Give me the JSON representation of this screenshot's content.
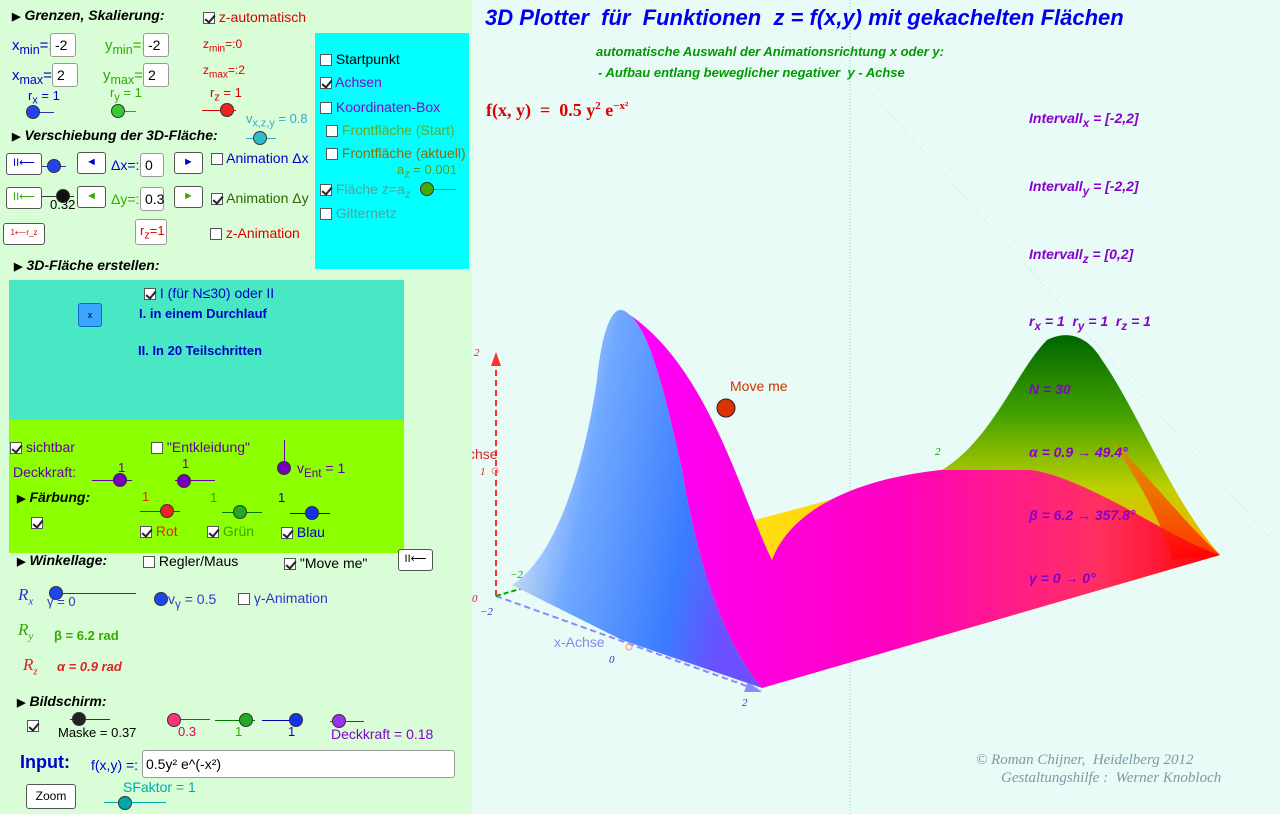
{
  "title": "3D Plotter  für  Funktionen  z = f(x,y) mit gekachelten Flächen",
  "subtitle1": "automatische Auswahl der Animationsrichtung x oder y:",
  "subtitle2": "- Aufbau entlang beweglicher negativer  y - Achse",
  "formula": {
    "lhs": "f(x, y)  =  0.5 y",
    "sup1": "2",
    "mid": " e",
    "sup2": "−x²"
  },
  "info": {
    "l1": "Intervall",
    "s1": "x",
    "v1": " = [-2,2]",
    "l2": "Intervall",
    "s2": "y",
    "v2": " = [-2,2]",
    "l3": "Intervall",
    "s3": "z",
    "v3": " = [0,2]",
    "r_line": "r",
    "rx": "x",
    "rx_v": " = 1  r",
    "ry": "y",
    "ry_v": " = 1  r",
    "rz": "z",
    "rz_v": " = 1",
    "n": "N = 30",
    "alpha": "α = 0.9 → 49.4°",
    "beta": "β = 6.2 → 357.8°",
    "gamma": "γ = 0 → 0°"
  },
  "credit1": "© Roman Chijner,  Heidelberg 2012",
  "credit2": "Gestaltungshilfe :  Werner Knobloch",
  "plot": {
    "move_me": "Move me",
    "z_axis": "z-Achse",
    "x_axis": "x-Achse",
    "t_z2": "2",
    "t_z1": "1",
    "t_z0": "0",
    "t_y2": "2",
    "t_ym2": "−2",
    "t_xm2": "−2",
    "t_x0": "0",
    "t_x2": "2"
  },
  "sec_grenzen": "Grenzen, Skalierung:",
  "z_auto": "z-automatisch",
  "xmin_l": "x",
  "xmin_s": "min",
  "xmin_eq": "=:",
  "xmin": "-2",
  "xmax_l": "x",
  "xmax_s": "max",
  "xmax_eq": "=:",
  "xmax": "2",
  "ymin_l": "y",
  "ymin_s": "min",
  "ymin_eq": "=:",
  "ymin": "-2",
  "ymax_l": "y",
  "ymax_s": "max",
  "ymax_eq": "=:",
  "ymax": "2",
  "zmin_l": "z",
  "zmin_s": "min",
  "zmin_v": "=:0",
  "zmax_l": "z",
  "zmax_s": "max",
  "zmax_v": "=:2",
  "rx_l": "r",
  "rx_s": "x",
  "rx_v": " = 1",
  "ry_l": "r",
  "ry_s": "y",
  "ry_v": " = 1",
  "rz_l": "r",
  "rz_s": "z",
  "rz_v": " = 1",
  "vxyz_l": "v",
  "vxyz_s": "x,z,y",
  "vxyz_v": " = 0.8",
  "cyan": {
    "startpunkt": "Startpunkt",
    "achsen": "Achsen",
    "kbox": "Koordinaten-Box",
    "front_start": "Frontfläche (Start)",
    "front_akt": "Frontfläche (aktuell)",
    "az_l": "a",
    "az_s": "z",
    "az_v": " = 0.001",
    "flaeche_l": "Fläche z=a",
    "flaeche_s": "z",
    "gitter": "Gitternetz"
  },
  "sec_versch": "Verschiebung der 3D-Fläche:",
  "dx_l": "Δx=:",
  "dx": "0",
  "anim_dx": "Animation Δx",
  "dy_l": "Δy=:",
  "dy": "0.3",
  "anim_dy": "Animation Δy",
  "slider_val": "0.32",
  "rz_box": "r",
  "rz_box_s": "z",
  "rz_box_v": "=1",
  "z_anim": "z-Animation",
  "btn_reset": "II⟵",
  "btn_left": "◄",
  "btn_right": "►",
  "btn_rz": "1⟵r_z",
  "sec_erstellen": "3D-Fläche erstellen:",
  "mode_label": "I (für N≤30) oder II",
  "run_btn": "x",
  "mode1": "I. in einem Durchlauf",
  "mode2": "II. In 20 Teilschritten",
  "sichtbar": "sichtbar",
  "entkl": "\"Entkleidung\"",
  "deckkraft": "Deckkraft:",
  "dk_v1": "1",
  "dk_v2": "1",
  "vent_l": "v",
  "vent_s": "Ent",
  "vent_v": " = 1",
  "sec_faerbung": "Färbung:",
  "rot_v": "1",
  "gruen_v": "1",
  "blau_v": "1",
  "rot": "Rot",
  "gruen": "Grün",
  "blau": "Blau",
  "sec_winkel": "Winkellage:",
  "regler": "Regler/Maus",
  "moveme": "\"Move me\"",
  "Rx": "R",
  "Rx_s": "x",
  "gamma_v": "γ = 0",
  "vg_l": "v",
  "vg_s": "γ",
  "vg_v": " = 0.5",
  "g_anim": "γ-Animation",
  "Ry": "R",
  "Ry_s": "y",
  "beta_v": "β = 6.2 rad",
  "Rz": "R",
  "Rz_s": "z",
  "alpha_v": "α = 0.9 rad",
  "sec_bild": "Bildschirm:",
  "maske": "Maske = 0.37",
  "b_v1": "0.3",
  "b_v2": "1",
  "b_v3": "1",
  "dk2": "Deckkraft = 0.18",
  "input_l": "Input:",
  "fxy_l": "f(x,y) =:",
  "fxy": "0.5y² e^(-x²)",
  "zoom": "Zoom",
  "sfaktor": "SFaktor = 1",
  "colors": {
    "title": "#0000ee",
    "green": "#009900",
    "purple": "#8800cc",
    "red": "#dd0000",
    "cyan_panel": "#00ffff",
    "lime_panel": "#8cff00",
    "teal_panel": "#48e8c4"
  }
}
